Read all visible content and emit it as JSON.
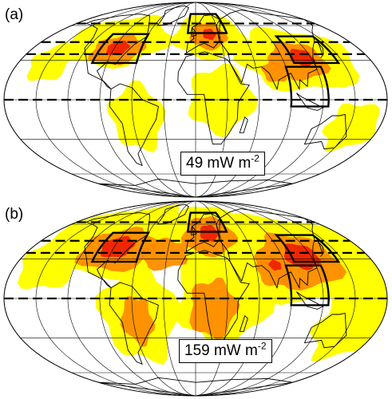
{
  "panels": [
    {
      "id": "a",
      "label": "(a)",
      "value": "49",
      "unit": "mW m",
      "exponent": "-2",
      "intensity": "low"
    },
    {
      "id": "b",
      "label": "(b)",
      "value": "159",
      "unit": "mW m",
      "exponent": "-2",
      "intensity": "high"
    }
  ],
  "colors": {
    "yellow": "#ffff00",
    "light_orange": "#ffd000",
    "orange": "#ff8c00",
    "dark_orange": "#ff6a00",
    "red": "#ee2200",
    "lines": "#000000"
  },
  "projection": "mollweide",
  "icons": [
    "graticule",
    "coastline",
    "region-box",
    "latitude-band"
  ]
}
